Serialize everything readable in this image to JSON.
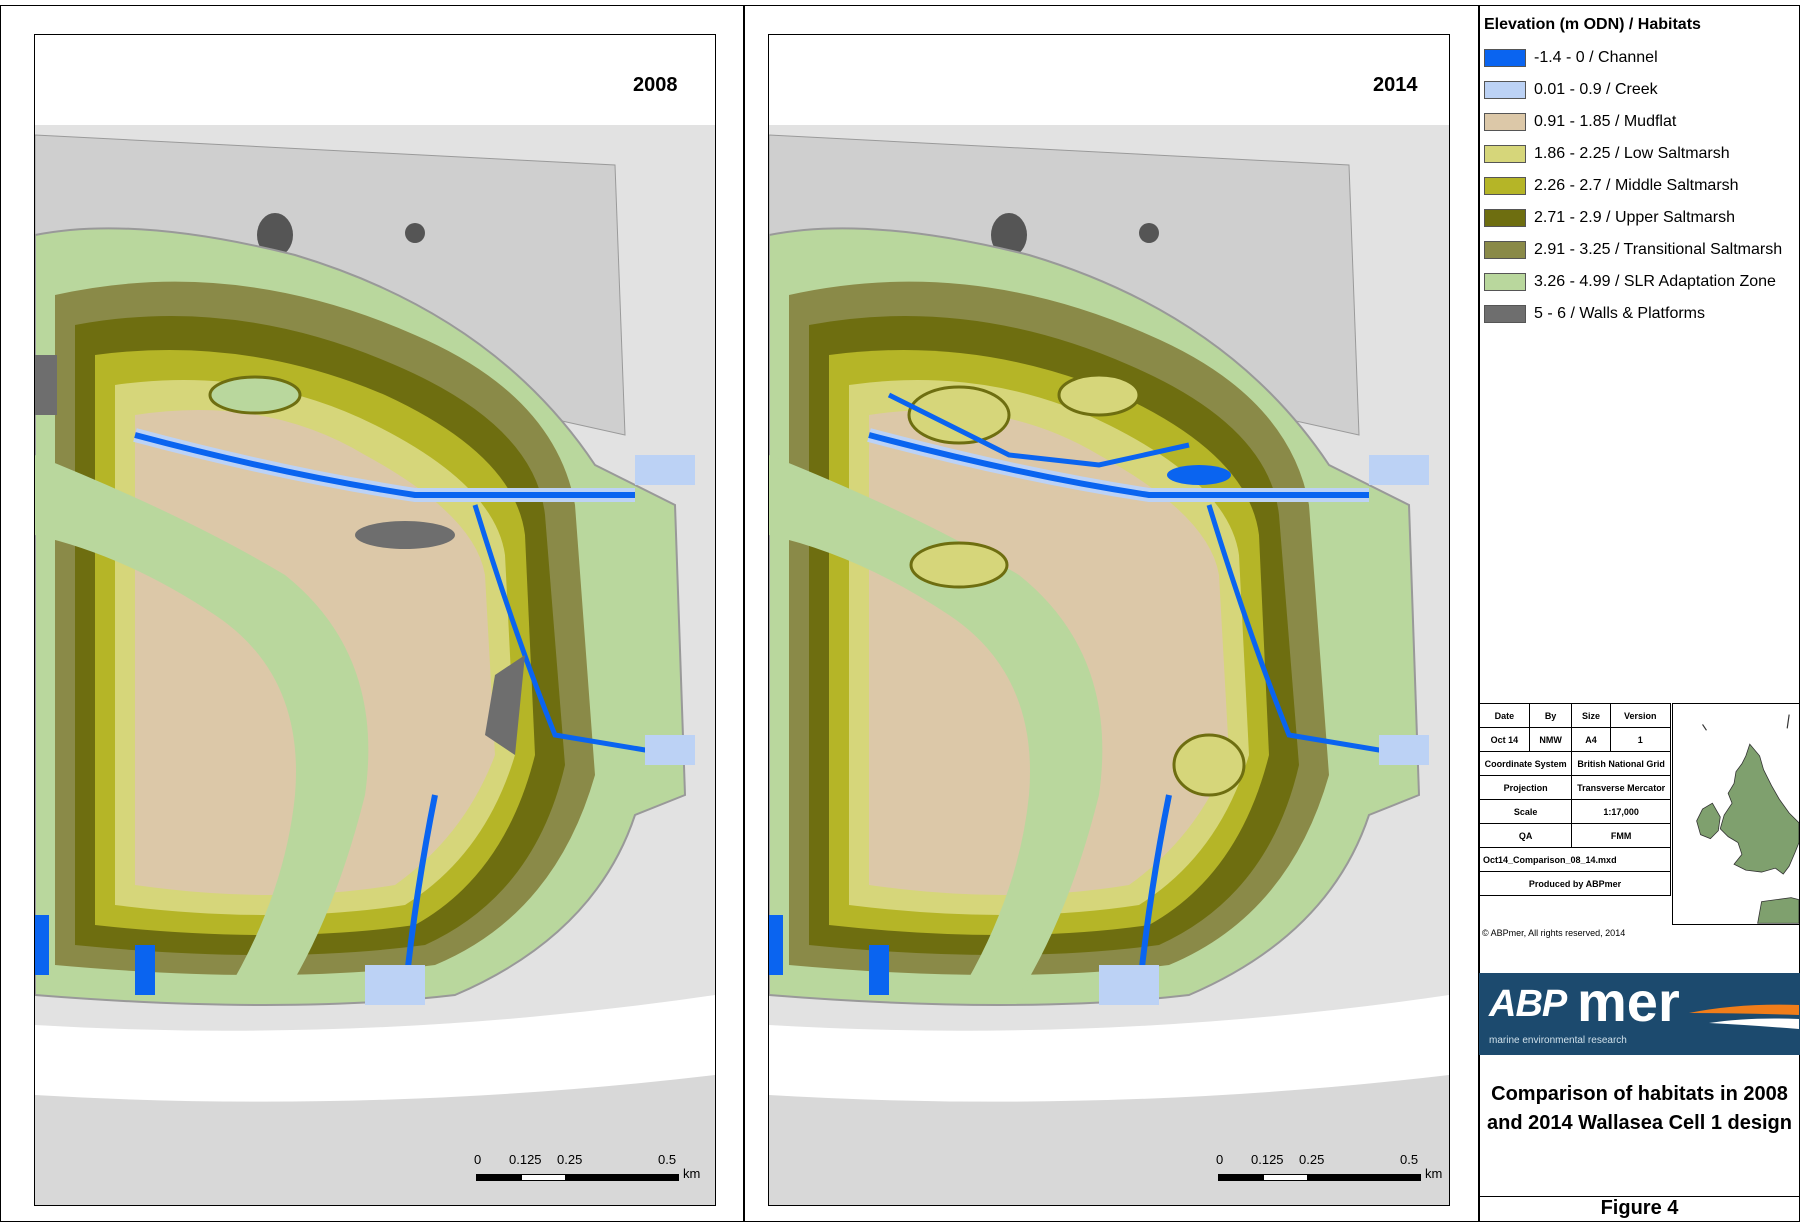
{
  "maps": [
    {
      "year": "2008"
    },
    {
      "year": "2014"
    }
  ],
  "scale_bar": {
    "ticks": [
      "0",
      "0.125",
      "0.25",
      "0.5"
    ],
    "unit": "km"
  },
  "legend": {
    "title": "Elevation (m ODN) / Habitats",
    "items": [
      {
        "label": "-1.4 - 0 / Channel",
        "color": "#0a64f0"
      },
      {
        "label": "0.01 - 0.9 / Creek",
        "color": "#bcd2f5"
      },
      {
        "label": "0.91 - 1.85 / Mudflat",
        "color": "#dcc8a8"
      },
      {
        "label": "1.86 - 2.25 / Low Saltmarsh",
        "color": "#d6d67a"
      },
      {
        "label": "2.26 - 2.7 / Middle Saltmarsh",
        "color": "#b5b527"
      },
      {
        "label": "2.71 - 2.9 / Upper Saltmarsh",
        "color": "#6e6e10"
      },
      {
        "label": "2.91 - 3.25 / Transitional Saltmarsh",
        "color": "#8a8a48"
      },
      {
        "label": "3.26 - 4.99 / SLR Adaptation Zone",
        "color": "#b9d79d"
      },
      {
        "label": "5 - 6 / Walls & Platforms",
        "color": "#6e6e6e"
      }
    ]
  },
  "info_table": {
    "date_label": "Date",
    "by_label": "By",
    "size_label": "Size",
    "version_label": "Version",
    "date": "Oct 14",
    "by": "NMW",
    "size": "A4",
    "version": "1",
    "coord_label": "Coordinate System",
    "coord": "British National Grid",
    "projection_label": "Projection",
    "projection": "Transverse Mercator",
    "scale_label": "Scale",
    "scale": "1:17,000",
    "qa_label": "QA",
    "qa": "FMM",
    "file": "Oct14_Comparison_08_14.mxd",
    "produced": "Produced by ABPmer"
  },
  "copyright": "© ABPmer, All rights reserved, 2014",
  "logo": {
    "abp": "ABP",
    "mer": "mer",
    "tagline": "marine environmental research"
  },
  "figure": {
    "title": "Comparison of habitats in 2008 and 2014 Wallasea Cell 1 design",
    "number": "Figure 4"
  }
}
